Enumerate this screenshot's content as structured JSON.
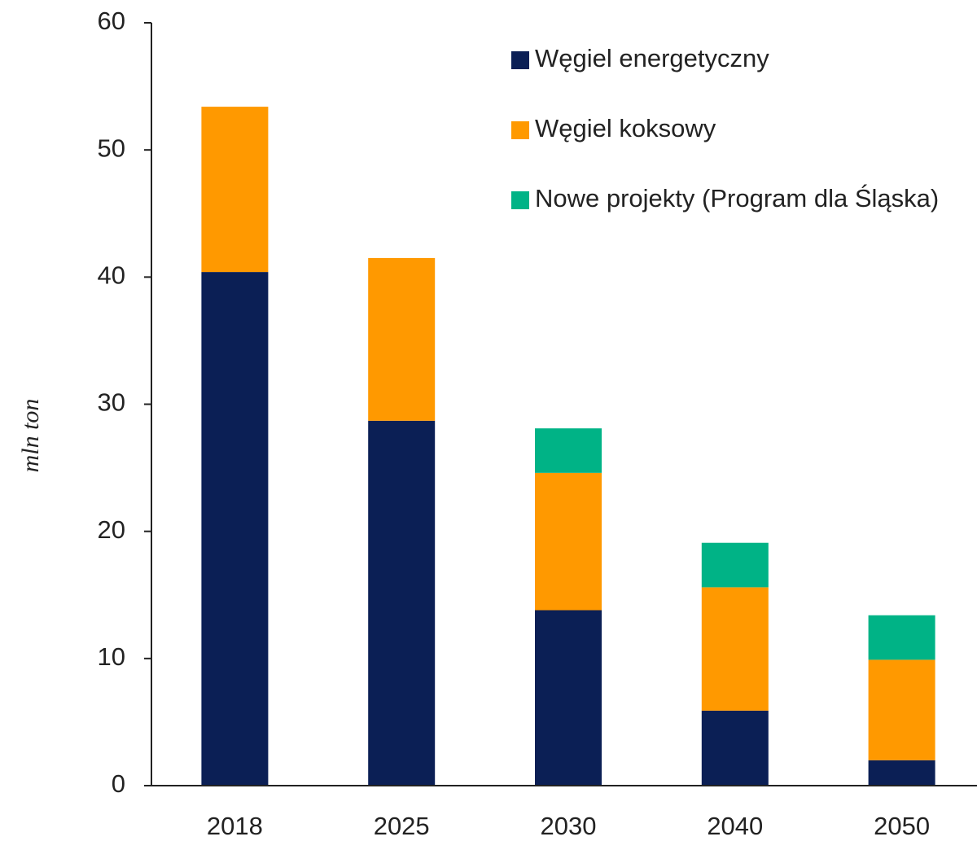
{
  "chart_data": {
    "type": "stacked_bar",
    "y_label": "mln ton",
    "categories": [
      "2018",
      "2025",
      "2030",
      "2040",
      "2050"
    ],
    "series": [
      {
        "name": "Węgiel energetyczny",
        "color": "#0b1f55",
        "values": [
          40.4,
          28.7,
          13.8,
          5.9,
          2.0
        ]
      },
      {
        "name": "Węgiel koksowy",
        "color": "#ff9900",
        "values": [
          13.0,
          12.8,
          10.8,
          9.7,
          7.9
        ]
      },
      {
        "name": "Nowe projekty (Program dla Śląska)",
        "color": "#00b386",
        "values": [
          0,
          0,
          3.5,
          3.5,
          3.5
        ]
      }
    ],
    "ylim": [
      0,
      60
    ],
    "yticks": [
      0,
      10,
      20,
      30,
      40,
      50,
      60
    ],
    "grid": false,
    "legend": "top-right"
  }
}
